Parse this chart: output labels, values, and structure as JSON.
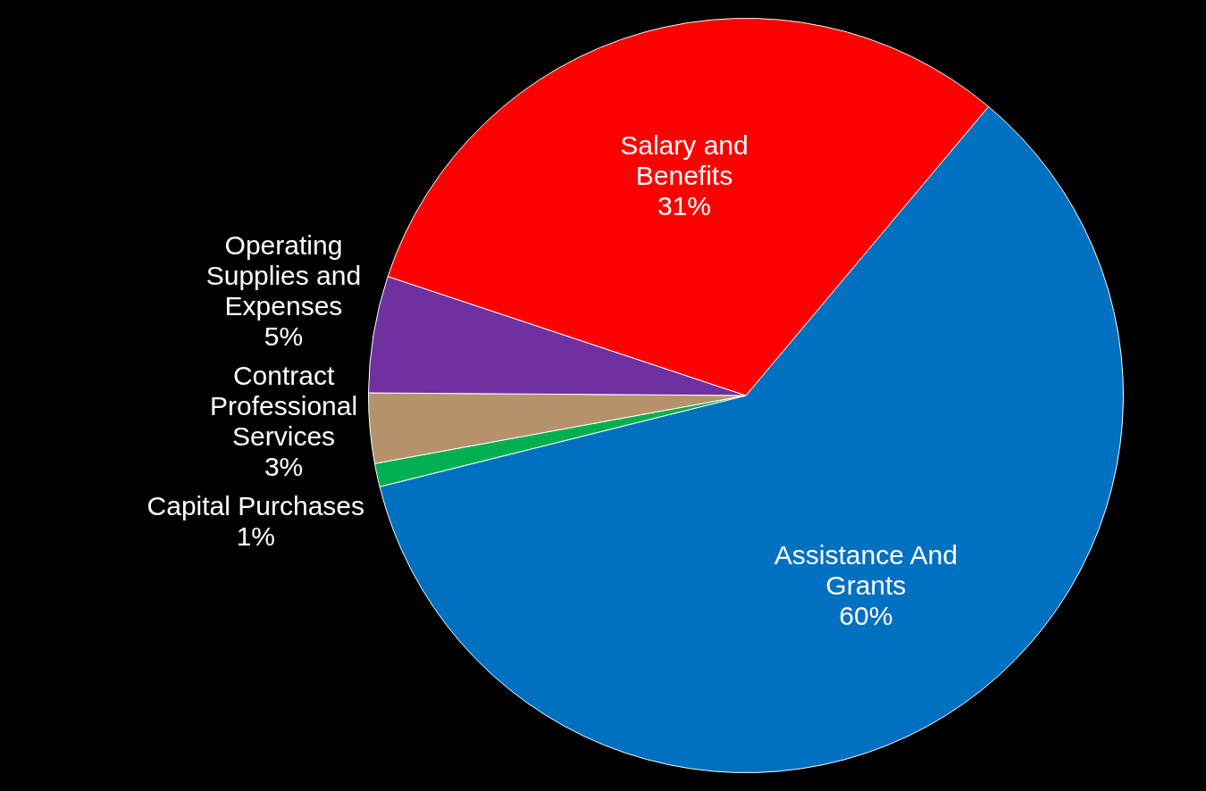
{
  "chart_data": {
    "type": "pie",
    "categories": [
      "Assistance And Grants",
      "Capital Purchases",
      "Contract Professional Services",
      "Operating Supplies and Expenses",
      "Salary and Benefits"
    ],
    "values": [
      60,
      1,
      3,
      5,
      31
    ],
    "colors": [
      "#0070c0",
      "#00b050",
      "#b5926a",
      "#7030a0",
      "#ff0000"
    ],
    "value_labels": [
      "60%",
      "1%",
      "3%",
      "5%",
      "31%"
    ],
    "legend": false
  }
}
